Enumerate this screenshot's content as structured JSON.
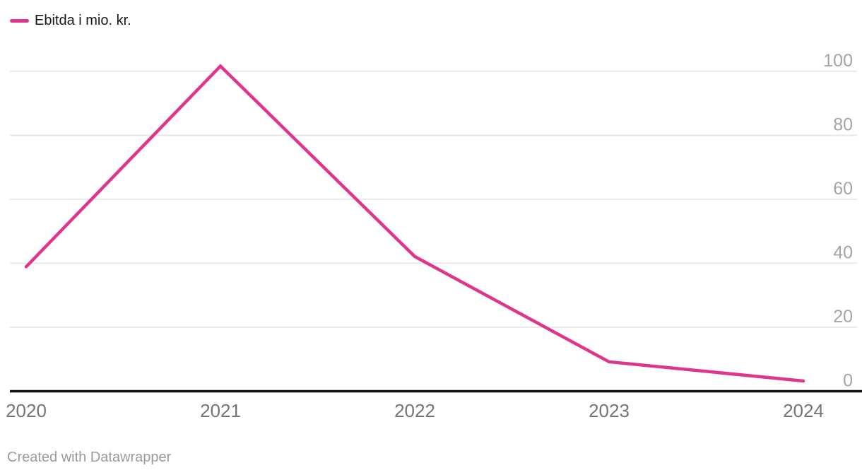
{
  "legend": {
    "label": "Ebitda i mio. kr."
  },
  "chart_data": {
    "type": "line",
    "title": "",
    "categories": [
      "2020",
      "2021",
      "2022",
      "2023",
      "2024"
    ],
    "series": [
      {
        "name": "Ebitda i mio. kr.",
        "values": [
          38.9,
          101.6,
          42.1,
          9.2,
          3.2
        ]
      }
    ],
    "xlabel": "",
    "ylabel": "",
    "ylim": [
      0,
      100
    ],
    "y_ticks": [
      0,
      20,
      40,
      60,
      80,
      100
    ],
    "grid": true,
    "legend_position": "top-left"
  },
  "footer": {
    "attribution": "Created with Datawrapper"
  },
  "colors": {
    "line": "#e0358c",
    "grid": "#e7e7e7",
    "axis": "#111111",
    "y_tick_label": "#a5a5a5",
    "x_tick_label": "#757575",
    "legend_text": "#1a1a1a",
    "attribution_text": "#9b9b9b",
    "background": "#ffffff"
  }
}
